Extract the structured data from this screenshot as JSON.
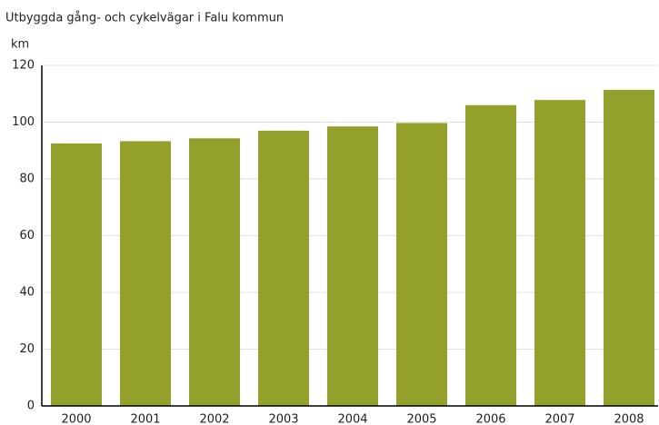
{
  "chart_data": {
    "type": "bar",
    "title": "Utbyggda gång- och cykelvägar i Falu kommun",
    "y_label": "km",
    "categories": [
      "2000",
      "2001",
      "2002",
      "2003",
      "2004",
      "2005",
      "2006",
      "2007",
      "2008"
    ],
    "values": [
      92.5,
      93.3,
      94.3,
      97,
      98.5,
      99.7,
      106,
      107.8,
      111.4
    ],
    "color": "#93a02b",
    "ylim": [
      0,
      120
    ],
    "yticks": [
      0,
      20,
      40,
      60,
      80,
      100,
      120
    ],
    "grid": true
  }
}
